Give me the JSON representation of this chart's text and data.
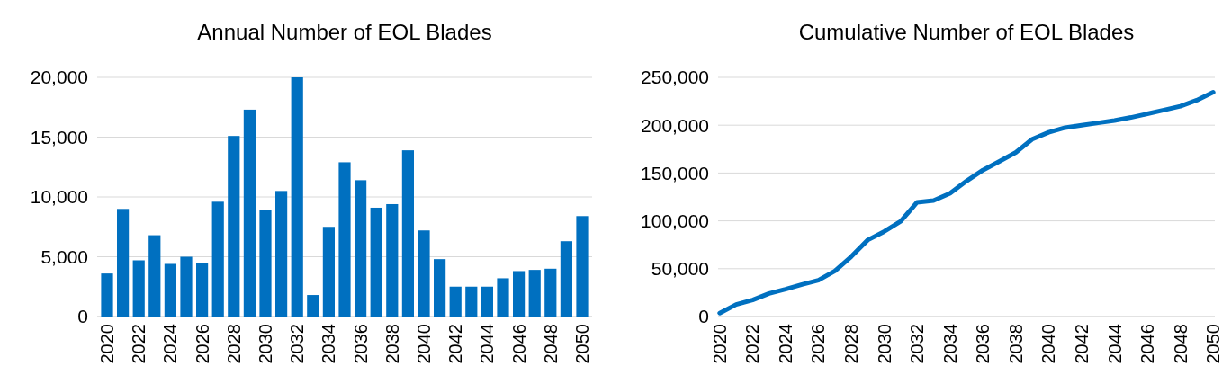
{
  "chart_data": [
    {
      "type": "bar",
      "title": "Annual Number of EOL Blades",
      "categories": [
        "2020",
        null,
        "2022",
        null,
        "2024",
        null,
        "2026",
        null,
        "2028",
        null,
        "2030",
        null,
        "2032",
        null,
        "2034",
        null,
        "2036",
        null,
        "2038",
        null,
        "2040",
        null,
        "2042",
        null,
        "2044",
        null,
        "2046",
        null,
        "2048",
        null,
        "2050"
      ],
      "values": [
        3600,
        9000,
        4700,
        6800,
        4400,
        5000,
        4500,
        9600,
        15100,
        17300,
        8900,
        10500,
        20000,
        1800,
        7500,
        12900,
        11400,
        9100,
        9400,
        13900,
        7200,
        4800,
        2500,
        2500,
        2500,
        3200,
        3800,
        3900,
        4000,
        6300,
        8400
      ],
      "color": "#0070c0",
      "ylim": [
        0,
        20000
      ],
      "yticks": [
        {
          "value": 0,
          "label": "0"
        },
        {
          "value": 5000,
          "label": "5,000"
        },
        {
          "value": 10000,
          "label": "10,000"
        },
        {
          "value": 15000,
          "label": "15,000"
        },
        {
          "value": 20000,
          "label": "20,000"
        }
      ],
      "grid": "y"
    },
    {
      "type": "line",
      "title": "Cumulative Number of EOL Blades",
      "categories": [
        "2020",
        null,
        "2022",
        null,
        "2024",
        null,
        "2026",
        null,
        "2028",
        null,
        "2030",
        null,
        "2032",
        null,
        "2034",
        null,
        "2036",
        null,
        "2038",
        null,
        "2040",
        null,
        "2042",
        null,
        "2044",
        null,
        "2046",
        null,
        "2048",
        null,
        "2050"
      ],
      "values": [
        3600,
        12600,
        17300,
        24100,
        28500,
        33500,
        38000,
        47600,
        62700,
        80000,
        88900,
        99400,
        119400,
        121200,
        128700,
        141600,
        153000,
        162100,
        171500,
        185400,
        192600,
        197400,
        199900,
        202400,
        204900,
        208100,
        211900,
        215800,
        219800,
        226100,
        234500
      ],
      "color": "#0070c0",
      "ylim": [
        0,
        250000
      ],
      "yticks": [
        {
          "value": 0,
          "label": "0"
        },
        {
          "value": 50000,
          "label": "50,000"
        },
        {
          "value": 100000,
          "label": "100,000"
        },
        {
          "value": 150000,
          "label": "150,000"
        },
        {
          "value": 200000,
          "label": "200,000"
        },
        {
          "value": 250000,
          "label": "250,000"
        }
      ],
      "grid": "y",
      "marker": "none",
      "line_style": "solid"
    }
  ]
}
